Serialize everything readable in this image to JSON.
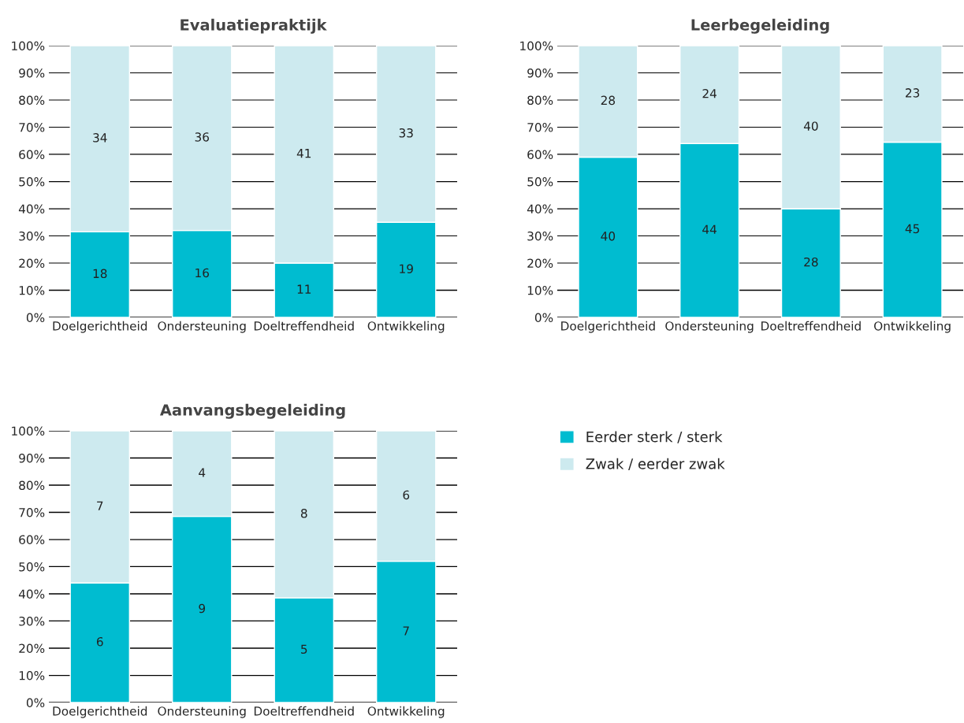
{
  "chart_data": [
    {
      "type": "bar",
      "stacked": true,
      "title": "Evaluatiepraktijk",
      "categories": [
        "Doelgerichtheid",
        "Ondersteuning",
        "Doeltreffendheid",
        "Ontwikkeling"
      ],
      "series": [
        {
          "name": "Eerder sterk / sterk",
          "color": "#00bcd0",
          "values": [
            31.5,
            32,
            20,
            35
          ]
        },
        {
          "name": "Zwak / eerder zwak",
          "color": "#cdeaef",
          "values": [
            68.5,
            68,
            80,
            65
          ]
        }
      ],
      "annotations": [
        "18",
        "16",
        "11",
        "19",
        "34",
        "36",
        "41",
        "33"
      ],
      "ylim": [
        0,
        100
      ],
      "yticks": [
        {
          "value": 0,
          "label": "0%"
        },
        {
          "value": 10,
          "label": "10%"
        },
        {
          "value": 20,
          "label": "20%"
        },
        {
          "value": 30,
          "label": "30%"
        },
        {
          "value": 40,
          "label": "40%"
        },
        {
          "value": 50,
          "label": "50%"
        },
        {
          "value": 60,
          "label": "60%"
        },
        {
          "value": 70,
          "label": "70%"
        },
        {
          "value": 80,
          "label": "80%"
        },
        {
          "value": 90,
          "label": "90%"
        },
        {
          "value": 100,
          "label": "100%"
        }
      ],
      "grid": "y",
      "legend": "bottom right"
    },
    {
      "type": "bar",
      "stacked": true,
      "title": "Leerbegeleiding",
      "categories": [
        "Doelgerichtheid",
        "Ondersteuning",
        "Doeltreffendheid",
        "Ontwikkeling"
      ],
      "series": [
        {
          "color": "#00bcd0",
          "values": [
            59,
            64,
            40,
            64.5
          ]
        },
        {
          "color": "#cdeaef",
          "values": [
            41,
            36,
            60,
            35.5
          ]
        }
      ],
      "annotations": [
        "40",
        "44",
        "28",
        "45",
        "28",
        "24",
        "40",
        "23"
      ],
      "ylim": [
        0,
        100
      ],
      "yticks": [
        {
          "value": 0,
          "label": "0%"
        },
        {
          "value": 10,
          "label": "10%"
        },
        {
          "value": 20,
          "label": "20%"
        },
        {
          "value": 30,
          "label": "30%"
        },
        {
          "value": 40,
          "label": "40%"
        },
        {
          "value": 50,
          "label": "50%"
        },
        {
          "value": 60,
          "label": "60%"
        },
        {
          "value": 70,
          "label": "70%"
        },
        {
          "value": 80,
          "label": "80%"
        },
        {
          "value": 90,
          "label": "90%"
        },
        {
          "value": 100,
          "label": "100%"
        }
      ],
      "grid": "y"
    },
    {
      "type": "bar",
      "stacked": true,
      "title": "Aanvangsbegeleiding",
      "categories": [
        "Doelgerichtheid",
        "Ondersteuning",
        "Doeltreffendheid",
        "Ontwikkeling"
      ],
      "series": [
        {
          "color": "#00bcd0",
          "values": [
            44,
            68.5,
            38.5,
            52
          ]
        },
        {
          "color": "#cdeaef",
          "values": [
            56,
            31.5,
            61.5,
            48
          ]
        }
      ],
      "annotations": [
        "6",
        "9",
        "5",
        "7",
        "7",
        "4",
        "8",
        "6"
      ],
      "ylim": [
        0,
        100
      ],
      "yticks": [
        {
          "value": 0,
          "label": "0%"
        },
        {
          "value": 10,
          "label": "10%"
        },
        {
          "value": 20,
          "label": "20%"
        },
        {
          "value": 30,
          "label": "30%"
        },
        {
          "value": 40,
          "label": "40%"
        },
        {
          "value": 50,
          "label": "50%"
        },
        {
          "value": 60,
          "label": "60%"
        },
        {
          "value": 70,
          "label": "70%"
        },
        {
          "value": 80,
          "label": "80%"
        },
        {
          "value": 90,
          "label": "90%"
        },
        {
          "value": 100,
          "label": "100%"
        }
      ],
      "grid": "y"
    }
  ]
}
